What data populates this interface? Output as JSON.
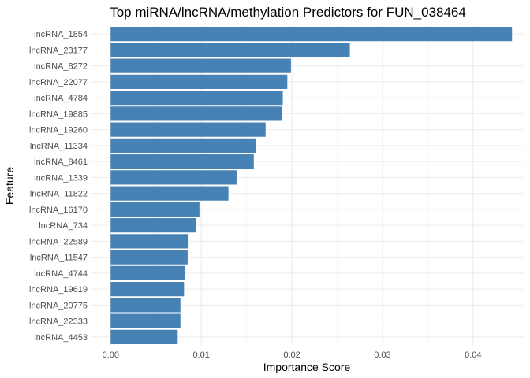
{
  "chart_data": {
    "type": "bar",
    "orientation": "horizontal",
    "title": "Top miRNA/lncRNA/methylation Predictors for FUN_038464",
    "xlabel": "Importance Score",
    "ylabel": "Feature",
    "xlim": [
      -0.0022,
      0.0455
    ],
    "xticks": [
      "0.00",
      "0.01",
      "0.02",
      "0.03",
      "0.04"
    ],
    "xtick_values": [
      0,
      0.01,
      0.02,
      0.03,
      0.04
    ],
    "grid": true,
    "bar_color": "#4682B4",
    "categories": [
      "lncRNA_1854",
      "lncRNA_23177",
      "lncRNA_8272",
      "lncRNA_22077",
      "lncRNA_4784",
      "lncRNA_19885",
      "lncRNA_19260",
      "lncRNA_11334",
      "lncRNA_8461",
      "lncRNA_1339",
      "lncRNA_11822",
      "lncRNA_16170",
      "lncRNA_734",
      "lncRNA_22589",
      "lncRNA_11547",
      "lncRNA_4744",
      "lncRNA_19619",
      "lncRNA_20775",
      "lncRNA_22333",
      "lncRNA_4453"
    ],
    "values": [
      0.0443,
      0.0264,
      0.0199,
      0.0195,
      0.019,
      0.0189,
      0.0171,
      0.016,
      0.0158,
      0.0139,
      0.013,
      0.0098,
      0.0094,
      0.0086,
      0.0085,
      0.0082,
      0.0081,
      0.0077,
      0.0077,
      0.0074
    ]
  }
}
